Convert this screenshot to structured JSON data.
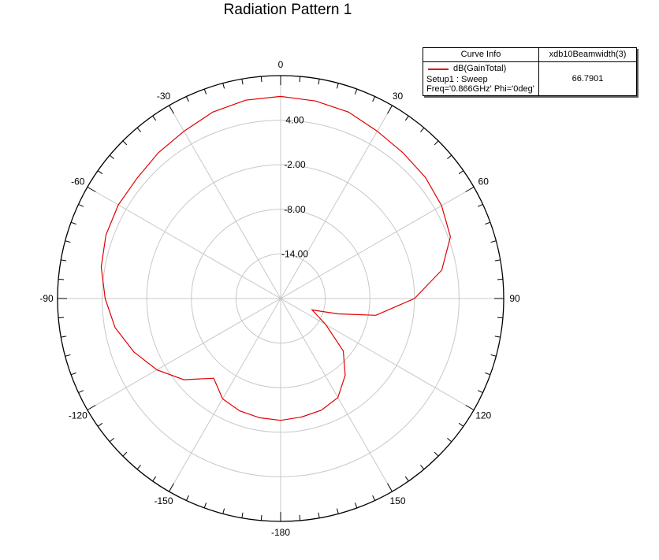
{
  "chart_data": {
    "type": "polar-line",
    "title": "Radiation Pattern 1",
    "angle_labels": [
      {
        "deg": 0,
        "text": "0"
      },
      {
        "deg": 30,
        "text": "30"
      },
      {
        "deg": 60,
        "text": "60"
      },
      {
        "deg": 90,
        "text": "90"
      },
      {
        "deg": 120,
        "text": "120"
      },
      {
        "deg": 150,
        "text": "150"
      },
      {
        "deg": 180,
        "text": "-180"
      },
      {
        "deg": -150,
        "text": "-150"
      },
      {
        "deg": -120,
        "text": "-120"
      },
      {
        "deg": -90,
        "text": "-90"
      },
      {
        "deg": -60,
        "text": "-60"
      },
      {
        "deg": -30,
        "text": "-30"
      }
    ],
    "radial_ticks": [
      {
        "value": 4.0,
        "text": "4.00"
      },
      {
        "value": -2.0,
        "text": "-2.00"
      },
      {
        "value": -8.0,
        "text": "-8.00"
      },
      {
        "value": -14.0,
        "text": "-14.00"
      }
    ],
    "rlim": [
      -20,
      10
    ],
    "grid": true,
    "legend_position": "top-right",
    "series": [
      {
        "name": "dB(GainTotal)",
        "color": "#e00000",
        "theta_deg": [
          0,
          10,
          20,
          30,
          40,
          50,
          60,
          70,
          80,
          90,
          100,
          105,
          110,
          120,
          130,
          140,
          150,
          160,
          170,
          180,
          -170,
          -160,
          -150,
          -140,
          -130,
          -120,
          -110,
          -100,
          -90,
          -80,
          -70,
          -60,
          -50,
          -40,
          -30,
          -20,
          -10
        ],
        "gain_db": [
          7.2,
          7.0,
          6.7,
          6.0,
          5.6,
          5.4,
          5.0,
          4.3,
          2.0,
          -2.0,
          -7.0,
          -12.0,
          -15.5,
          -13.0,
          -9.0,
          -6.5,
          -4.6,
          -4.0,
          -3.8,
          -3.6,
          -3.7,
          -3.9,
          -4.4,
          -6.0,
          -3.0,
          -0.8,
          1.0,
          2.6,
          3.6,
          4.5,
          5.0,
          5.2,
          5.2,
          5.6,
          6.0,
          6.7,
          7.1
        ]
      }
    ]
  },
  "legend": {
    "header_info": "Curve Info",
    "header_metric": "xdb10Beamwidth(3)",
    "series_label": "dB(GainTotal)",
    "setup_line": "Setup1 : Sweep",
    "freq_line": "Freq='0.866GHz' Phi='0deg'",
    "metric_value": "66.7901"
  }
}
